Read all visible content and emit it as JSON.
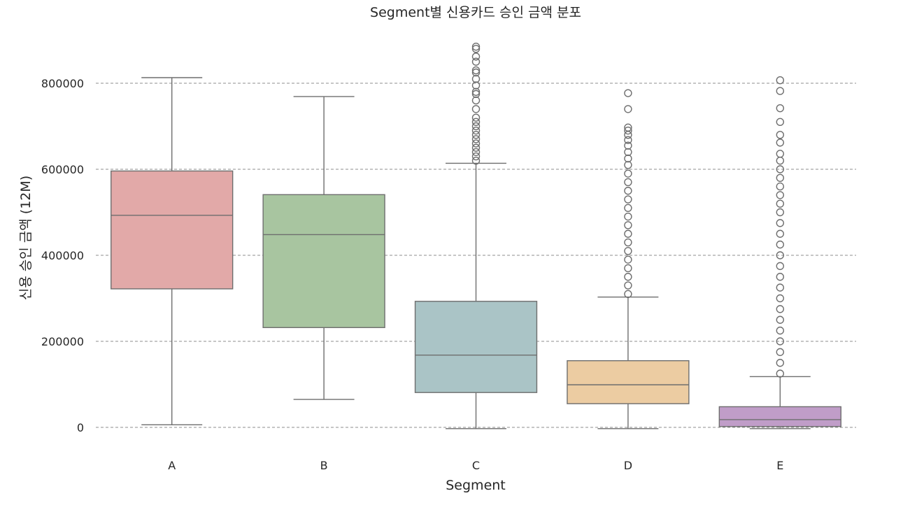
{
  "chart_data": {
    "type": "box",
    "title": "Segment별 신용카드 승인 금액 분포",
    "xlabel": "Segment",
    "ylabel": "신용 승인 금액 (12M)",
    "ylim": [
      -60000,
      880000
    ],
    "yticks": [
      0,
      200000,
      400000,
      600000,
      800000
    ],
    "ytick_labels": [
      "0",
      "200000",
      "400000",
      "600000",
      "800000"
    ],
    "grid": "y, dashed",
    "categories": [
      "A",
      "B",
      "C",
      "D",
      "E"
    ],
    "colors": [
      "#e2a9a8",
      "#a8c5a0",
      "#aac4c6",
      "#eccca2",
      "#c09dc8"
    ],
    "line_color": "#6e6e6e",
    "series": [
      {
        "category": "A",
        "whisker_low": 6000,
        "q1": 322000,
        "median": 493000,
        "q3": 596000,
        "whisker_high": 813000,
        "outliers": []
      },
      {
        "category": "B",
        "whisker_low": 65000,
        "q1": 232000,
        "median": 448000,
        "q3": 541000,
        "whisker_high": 769000,
        "outliers": []
      },
      {
        "category": "C",
        "whisker_low": -3000,
        "q1": 81000,
        "median": 168000,
        "q3": 293000,
        "whisker_high": 614000,
        "outliers": [
          620000,
          630000,
          640000,
          650000,
          660000,
          670000,
          680000,
          690000,
          700000,
          710000,
          720000,
          740000,
          760000,
          775000,
          780000,
          795000,
          810000,
          825000,
          830000,
          850000,
          862000,
          880000,
          885000
        ]
      },
      {
        "category": "D",
        "whisker_low": -3000,
        "q1": 55000,
        "median": 99000,
        "q3": 155000,
        "whisker_high": 303000,
        "outliers": [
          310000,
          330000,
          350000,
          370000,
          390000,
          410000,
          430000,
          450000,
          470000,
          490000,
          510000,
          530000,
          550000,
          570000,
          590000,
          610000,
          625000,
          640000,
          655000,
          668000,
          680000,
          690000,
          697000,
          740000,
          777000
        ]
      },
      {
        "category": "E",
        "whisker_low": -3000,
        "q1": 2000,
        "median": 18000,
        "q3": 48000,
        "whisker_high": 118000,
        "outliers": [
          125000,
          150000,
          175000,
          200000,
          225000,
          250000,
          275000,
          300000,
          325000,
          350000,
          375000,
          400000,
          425000,
          450000,
          475000,
          500000,
          520000,
          540000,
          560000,
          580000,
          600000,
          620000,
          636000,
          662000,
          680000,
          710000,
          742000,
          782000,
          807000
        ]
      }
    ]
  }
}
